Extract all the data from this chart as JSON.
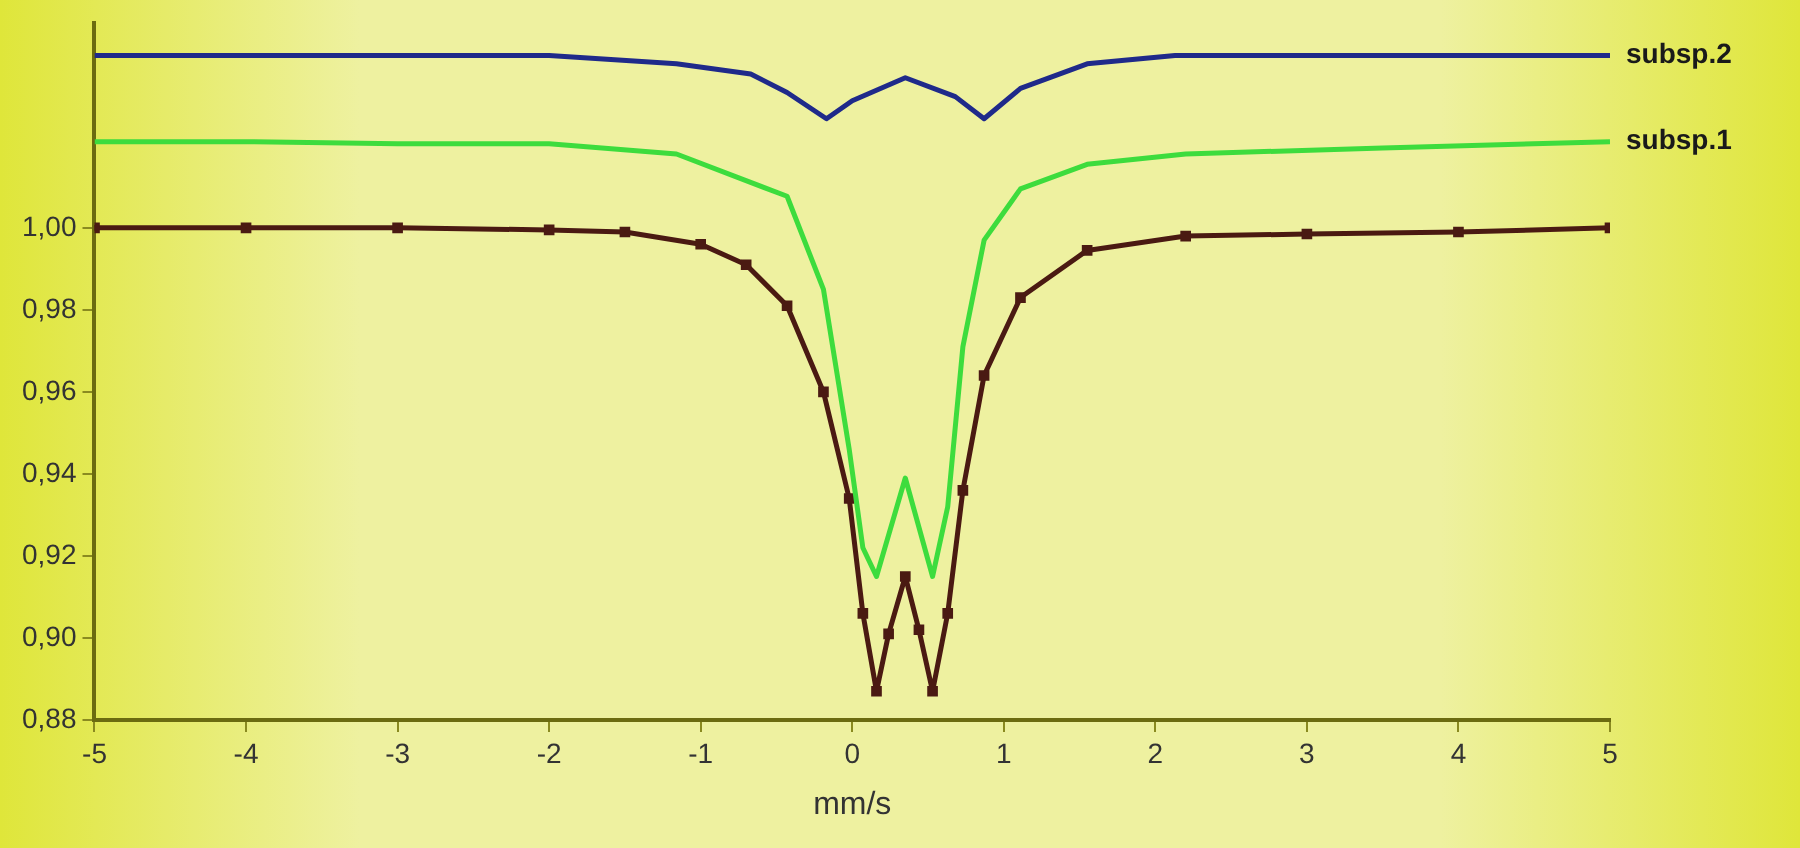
{
  "chart_data": {
    "type": "line",
    "xlabel": "mm/s",
    "xlim": [
      -5,
      5
    ],
    "xticks": [
      -5,
      -4,
      -3,
      -2,
      -1,
      0,
      1,
      2,
      3,
      4,
      5
    ],
    "ylim": [
      0.88,
      1.05
    ],
    "yticks": [
      {
        "value": 0.88,
        "label": "0,88"
      },
      {
        "value": 0.9,
        "label": "0,90"
      },
      {
        "value": 0.92,
        "label": "0,92"
      },
      {
        "value": 0.94,
        "label": "0,94"
      },
      {
        "value": 0.96,
        "label": "0,96"
      },
      {
        "value": 0.98,
        "label": "0,98"
      },
      {
        "value": 1.0,
        "label": "1,00"
      }
    ],
    "grid": false,
    "legend": false,
    "line_style": "solid",
    "series": [
      {
        "name": "subsp.2",
        "color": "#1f2a8a",
        "x": [
          -5,
          -4,
          -3,
          -2,
          -1.16,
          -0.67,
          -0.43,
          -0.17,
          0.0,
          0.35,
          0.68,
          0.87,
          1.11,
          1.55,
          2.13,
          3,
          4,
          5
        ],
        "values": [
          1.042,
          1.042,
          1.042,
          1.042,
          1.04,
          1.0375,
          1.033,
          1.0266,
          1.031,
          1.0366,
          1.032,
          1.0266,
          1.034,
          1.04,
          1.042,
          1.042,
          1.042,
          1.042
        ]
      },
      {
        "name": "subsp.1",
        "color": "#3ddc3d",
        "x": [
          -5,
          -4,
          -3,
          -2,
          -1.16,
          -0.43,
          -0.19,
          -0.02,
          0.07,
          0.16,
          0.35,
          0.53,
          0.63,
          0.73,
          0.87,
          1.11,
          1.55,
          2.2,
          3.5,
          5
        ],
        "values": [
          1.021,
          1.021,
          1.0205,
          1.0205,
          1.018,
          1.0077,
          0.985,
          0.946,
          0.922,
          0.915,
          0.939,
          0.915,
          0.932,
          0.971,
          0.997,
          1.0095,
          1.0155,
          1.018,
          1.0195,
          1.021
        ]
      },
      {
        "color": "#4a1a12",
        "marker": "square",
        "x": [
          -5,
          -4,
          -3,
          -2,
          -1.5,
          -1,
          -0.7,
          -0.43,
          -0.19,
          -0.02,
          0.07,
          0.16,
          0.24,
          0.35,
          0.44,
          0.53,
          0.63,
          0.73,
          0.87,
          1.11,
          1.55,
          2.2,
          3,
          4,
          5
        ],
        "values": [
          1.0,
          1.0,
          1.0,
          0.9995,
          0.999,
          0.996,
          0.991,
          0.981,
          0.96,
          0.934,
          0.906,
          0.887,
          0.901,
          0.915,
          0.902,
          0.887,
          0.906,
          0.936,
          0.964,
          0.983,
          0.9945,
          0.998,
          0.9985,
          0.999,
          1.0
        ]
      }
    ]
  }
}
